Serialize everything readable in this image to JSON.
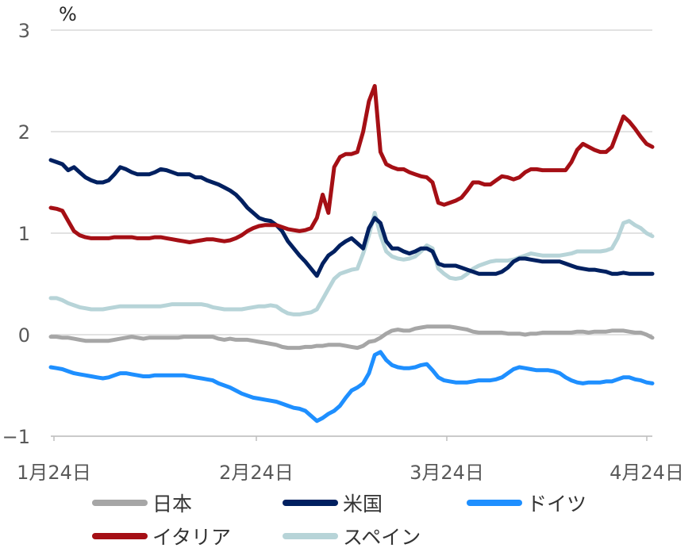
{
  "chart_data": {
    "type": "line",
    "unit": "%",
    "ylim": [
      -1,
      3
    ],
    "yticks": [
      "3",
      "2",
      "1",
      "0",
      "−1"
    ],
    "xticks": [
      "1月24日",
      "2月24日",
      "3月24日",
      "4月24日"
    ],
    "grid": true,
    "legend_position": "bottom",
    "series": [
      {
        "name": "日本",
        "color": "#A6A6A6",
        "values": [
          -0.02,
          -0.02,
          -0.03,
          -0.03,
          -0.04,
          -0.05,
          -0.06,
          -0.06,
          -0.06,
          -0.06,
          -0.06,
          -0.05,
          -0.04,
          -0.03,
          -0.02,
          -0.03,
          -0.04,
          -0.03,
          -0.03,
          -0.03,
          -0.03,
          -0.03,
          -0.03,
          -0.02,
          -0.02,
          -0.02,
          -0.02,
          -0.02,
          -0.02,
          -0.04,
          -0.05,
          -0.04,
          -0.05,
          -0.05,
          -0.05,
          -0.06,
          -0.07,
          -0.08,
          -0.09,
          -0.1,
          -0.12,
          -0.13,
          -0.13,
          -0.13,
          -0.12,
          -0.12,
          -0.11,
          -0.11,
          -0.1,
          -0.1,
          -0.1,
          -0.11,
          -0.12,
          -0.13,
          -0.11,
          -0.07,
          -0.06,
          -0.03,
          0.01,
          0.04,
          0.05,
          0.04,
          0.04,
          0.06,
          0.07,
          0.08,
          0.08,
          0.08,
          0.08,
          0.08,
          0.07,
          0.06,
          0.05,
          0.03,
          0.02,
          0.02,
          0.02,
          0.02,
          0.02,
          0.01,
          0.01,
          0.01,
          0.0,
          0.01,
          0.01,
          0.02,
          0.02,
          0.02,
          0.02,
          0.02,
          0.02,
          0.03,
          0.03,
          0.02,
          0.03,
          0.03,
          0.03,
          0.04,
          0.04,
          0.04,
          0.03,
          0.02,
          0.02,
          0.0,
          -0.03
        ]
      },
      {
        "name": "米国",
        "color": "#002060",
        "values": [
          1.72,
          1.7,
          1.68,
          1.62,
          1.65,
          1.6,
          1.55,
          1.52,
          1.5,
          1.5,
          1.52,
          1.58,
          1.65,
          1.63,
          1.6,
          1.58,
          1.58,
          1.58,
          1.6,
          1.63,
          1.62,
          1.6,
          1.58,
          1.58,
          1.58,
          1.55,
          1.55,
          1.52,
          1.5,
          1.48,
          1.45,
          1.42,
          1.38,
          1.32,
          1.25,
          1.2,
          1.15,
          1.13,
          1.12,
          1.08,
          1.02,
          0.92,
          0.85,
          0.78,
          0.72,
          0.65,
          0.58,
          0.7,
          0.78,
          0.82,
          0.88,
          0.92,
          0.95,
          0.9,
          0.85,
          1.05,
          1.15,
          1.1,
          0.92,
          0.85,
          0.85,
          0.82,
          0.8,
          0.82,
          0.85,
          0.85,
          0.82,
          0.7,
          0.68,
          0.68,
          0.68,
          0.66,
          0.64,
          0.62,
          0.6,
          0.6,
          0.6,
          0.6,
          0.62,
          0.66,
          0.72,
          0.75,
          0.75,
          0.74,
          0.73,
          0.72,
          0.72,
          0.72,
          0.72,
          0.7,
          0.68,
          0.66,
          0.65,
          0.64,
          0.64,
          0.63,
          0.62,
          0.6,
          0.6,
          0.61,
          0.6,
          0.6,
          0.6,
          0.6,
          0.6
        ]
      },
      {
        "name": "ドイツ",
        "color": "#1E8FFF",
        "values": [
          -0.32,
          -0.33,
          -0.34,
          -0.36,
          -0.38,
          -0.39,
          -0.4,
          -0.41,
          -0.42,
          -0.43,
          -0.42,
          -0.4,
          -0.38,
          -0.38,
          -0.39,
          -0.4,
          -0.41,
          -0.41,
          -0.4,
          -0.4,
          -0.4,
          -0.4,
          -0.4,
          -0.4,
          -0.41,
          -0.42,
          -0.43,
          -0.44,
          -0.45,
          -0.48,
          -0.5,
          -0.52,
          -0.55,
          -0.58,
          -0.6,
          -0.62,
          -0.63,
          -0.64,
          -0.65,
          -0.66,
          -0.68,
          -0.7,
          -0.72,
          -0.73,
          -0.75,
          -0.8,
          -0.85,
          -0.82,
          -0.78,
          -0.75,
          -0.7,
          -0.62,
          -0.55,
          -0.52,
          -0.48,
          -0.38,
          -0.2,
          -0.17,
          -0.25,
          -0.3,
          -0.32,
          -0.33,
          -0.33,
          -0.32,
          -0.3,
          -0.29,
          -0.35,
          -0.42,
          -0.45,
          -0.46,
          -0.47,
          -0.47,
          -0.47,
          -0.46,
          -0.45,
          -0.45,
          -0.45,
          -0.44,
          -0.42,
          -0.38,
          -0.34,
          -0.32,
          -0.33,
          -0.34,
          -0.35,
          -0.35,
          -0.35,
          -0.36,
          -0.38,
          -0.42,
          -0.45,
          -0.47,
          -0.48,
          -0.47,
          -0.47,
          -0.47,
          -0.46,
          -0.46,
          -0.44,
          -0.42,
          -0.42,
          -0.44,
          -0.45,
          -0.47,
          -0.48
        ]
      },
      {
        "name": "イタリア",
        "color": "#A50F15",
        "values": [
          1.25,
          1.24,
          1.22,
          1.12,
          1.02,
          0.98,
          0.96,
          0.95,
          0.95,
          0.95,
          0.95,
          0.96,
          0.96,
          0.96,
          0.96,
          0.95,
          0.95,
          0.95,
          0.96,
          0.96,
          0.95,
          0.94,
          0.93,
          0.92,
          0.91,
          0.92,
          0.93,
          0.94,
          0.94,
          0.93,
          0.92,
          0.93,
          0.95,
          0.98,
          1.02,
          1.05,
          1.07,
          1.08,
          1.08,
          1.08,
          1.06,
          1.04,
          1.03,
          1.02,
          1.03,
          1.05,
          1.15,
          1.38,
          1.2,
          1.65,
          1.75,
          1.78,
          1.78,
          1.8,
          2.0,
          2.3,
          2.45,
          1.8,
          1.68,
          1.65,
          1.63,
          1.63,
          1.6,
          1.58,
          1.56,
          1.55,
          1.5,
          1.3,
          1.28,
          1.3,
          1.32,
          1.35,
          1.42,
          1.5,
          1.5,
          1.48,
          1.48,
          1.52,
          1.56,
          1.55,
          1.53,
          1.55,
          1.6,
          1.63,
          1.63,
          1.62,
          1.62,
          1.62,
          1.62,
          1.62,
          1.7,
          1.82,
          1.88,
          1.85,
          1.82,
          1.8,
          1.8,
          1.85,
          2.0,
          2.15,
          2.1,
          2.03,
          1.95,
          1.88,
          1.85
        ]
      },
      {
        "name": "スペイン",
        "color": "#B7D4D8",
        "values": [
          0.36,
          0.36,
          0.34,
          0.31,
          0.29,
          0.27,
          0.26,
          0.25,
          0.25,
          0.25,
          0.26,
          0.27,
          0.28,
          0.28,
          0.28,
          0.28,
          0.28,
          0.28,
          0.28,
          0.28,
          0.29,
          0.3,
          0.3,
          0.3,
          0.3,
          0.3,
          0.3,
          0.29,
          0.27,
          0.26,
          0.25,
          0.25,
          0.25,
          0.25,
          0.26,
          0.27,
          0.28,
          0.28,
          0.29,
          0.28,
          0.24,
          0.21,
          0.2,
          0.2,
          0.21,
          0.22,
          0.25,
          0.35,
          0.45,
          0.55,
          0.6,
          0.62,
          0.64,
          0.65,
          0.8,
          0.98,
          1.2,
          0.98,
          0.82,
          0.77,
          0.75,
          0.74,
          0.75,
          0.77,
          0.82,
          0.88,
          0.85,
          0.65,
          0.6,
          0.56,
          0.55,
          0.56,
          0.6,
          0.65,
          0.68,
          0.7,
          0.72,
          0.73,
          0.73,
          0.73,
          0.74,
          0.76,
          0.78,
          0.8,
          0.79,
          0.78,
          0.78,
          0.78,
          0.78,
          0.79,
          0.8,
          0.82,
          0.82,
          0.82,
          0.82,
          0.82,
          0.83,
          0.85,
          0.95,
          1.1,
          1.12,
          1.08,
          1.05,
          1.0,
          0.97
        ]
      }
    ]
  },
  "legend": {
    "items": [
      {
        "label": "日本",
        "color": "#A6A6A6"
      },
      {
        "label": "米国",
        "color": "#002060"
      },
      {
        "label": "ドイツ",
        "color": "#1E8FFF"
      },
      {
        "label": "イタリア",
        "color": "#A50F15"
      },
      {
        "label": "スペイン",
        "color": "#B7D4D8"
      }
    ]
  }
}
